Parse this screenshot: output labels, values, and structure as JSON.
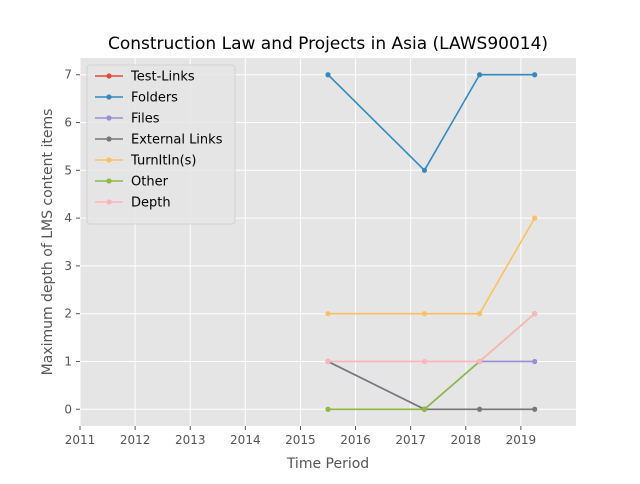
{
  "chart_data": {
    "type": "line",
    "title": "Construction Law and Projects in Asia (LAWS90014)",
    "xlabel": "Time Period",
    "ylabel": "Maximum depth of LMS content items",
    "xlim": [
      2011.0,
      2020.0
    ],
    "ylim": [
      -0.35,
      7.35
    ],
    "xticks": [
      2011,
      2012,
      2013,
      2014,
      2015,
      2016,
      2017,
      2018,
      2019
    ],
    "xtick_labels": [
      "2011",
      "2012",
      "2013",
      "2014",
      "2015",
      "2016",
      "2017",
      "2018",
      "2019"
    ],
    "yticks": [
      0,
      1,
      2,
      3,
      4,
      5,
      6,
      7
    ],
    "ytick_labels": [
      "0",
      "1",
      "2",
      "3",
      "4",
      "5",
      "6",
      "7"
    ],
    "x": [
      2015.5,
      2017.25,
      2018.25,
      2019.25
    ],
    "grid": true,
    "legend_position": "top-left",
    "style": "ggplot",
    "series": [
      {
        "name": "Test-Links",
        "color": "#E24A33",
        "values": [
          null,
          null,
          null,
          null
        ]
      },
      {
        "name": "Folders",
        "color": "#348ABD",
        "values": [
          7,
          5,
          7,
          7
        ]
      },
      {
        "name": "Files",
        "color": "#988ED5",
        "values": [
          1,
          0,
          1,
          1
        ]
      },
      {
        "name": "External Links",
        "color": "#777777",
        "values": [
          1,
          0,
          0,
          0
        ]
      },
      {
        "name": "TurnItIn(s)",
        "color": "#FBC15E",
        "values": [
          2,
          2,
          2,
          4
        ]
      },
      {
        "name": "Other",
        "color": "#8EBA42",
        "values": [
          0,
          0,
          1,
          2
        ]
      },
      {
        "name": "Depth",
        "color": "#FFB5B8",
        "values": [
          1,
          1,
          1,
          2
        ]
      }
    ]
  }
}
